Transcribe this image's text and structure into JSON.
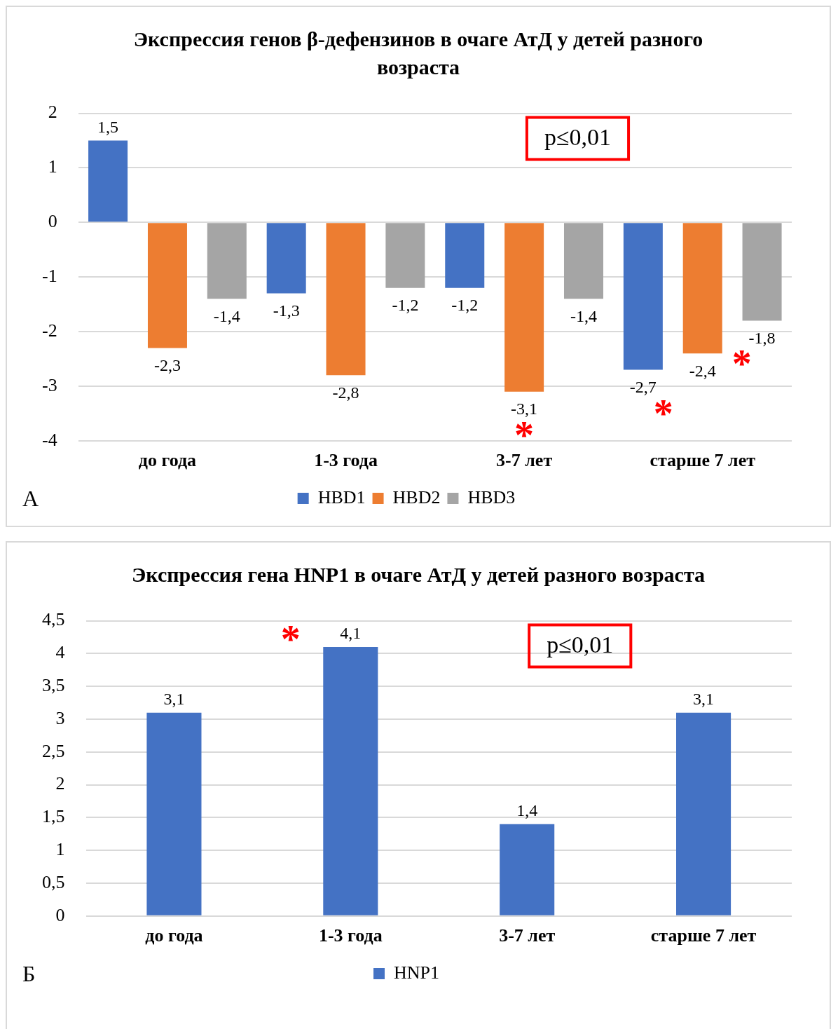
{
  "chart_data": [
    {
      "type": "bar",
      "title": "Экспрессия генов β-дефензинов в очаге АтД у детей разного возраста",
      "categories": [
        "до года",
        "1-3 года",
        "3-7 лет",
        "старше 7 лет"
      ],
      "series": [
        {
          "name": "HBD1",
          "color": "#4472c4",
          "values": [
            1.5,
            -1.3,
            -1.2,
            -2.7
          ],
          "value_labels": [
            "1,5",
            "-1,3",
            "-1,2",
            "-2,7"
          ]
        },
        {
          "name": "HBD2",
          "color": "#ed7d31",
          "values": [
            -2.3,
            -2.8,
            -3.1,
            -2.4
          ],
          "value_labels": [
            "-2,3",
            "-2,8",
            "-3,1",
            "-2,4"
          ]
        },
        {
          "name": "HBD3",
          "color": "#a5a5a5",
          "values": [
            -1.4,
            -1.2,
            -1.4,
            -1.8
          ],
          "value_labels": [
            "-1,4",
            "-1,2",
            "-1,4",
            "-1,8"
          ]
        }
      ],
      "ylim": [
        -4,
        2
      ],
      "yticks": [
        -4,
        -3,
        -2,
        -1,
        0,
        1,
        2
      ],
      "grid": "y",
      "legend": "bottom",
      "annotations": [
        "p≤0,01",
        "А",
        "*",
        "*",
        "*"
      ]
    },
    {
      "type": "bar",
      "title": "Экспрессия гена HNP1 в очаге АтД у детей разного возраста",
      "categories": [
        "до года",
        "1-3 года",
        "3-7 лет",
        "старше 7 лет"
      ],
      "series": [
        {
          "name": "HNP1",
          "color": "#4472c4",
          "values": [
            3.1,
            4.1,
            1.4,
            3.1
          ],
          "value_labels": [
            "3,1",
            "4,1",
            "1,4",
            "3,1"
          ]
        }
      ],
      "ylim": [
        0,
        4.5
      ],
      "yticks": [
        0,
        {
          "value": 0.5,
          "label": "0,5"
        },
        1,
        {
          "value": 1.5,
          "label": "1,5"
        },
        2,
        {
          "value": 2.5,
          "label": "2,5"
        },
        3,
        {
          "value": 3.5,
          "label": "3,5"
        },
        4,
        {
          "value": 4.5,
          "label": "4,5"
        }
      ],
      "grid": "y",
      "legend": "bottom",
      "annotations": [
        "p≤0,01",
        "Б",
        "*"
      ]
    }
  ]
}
